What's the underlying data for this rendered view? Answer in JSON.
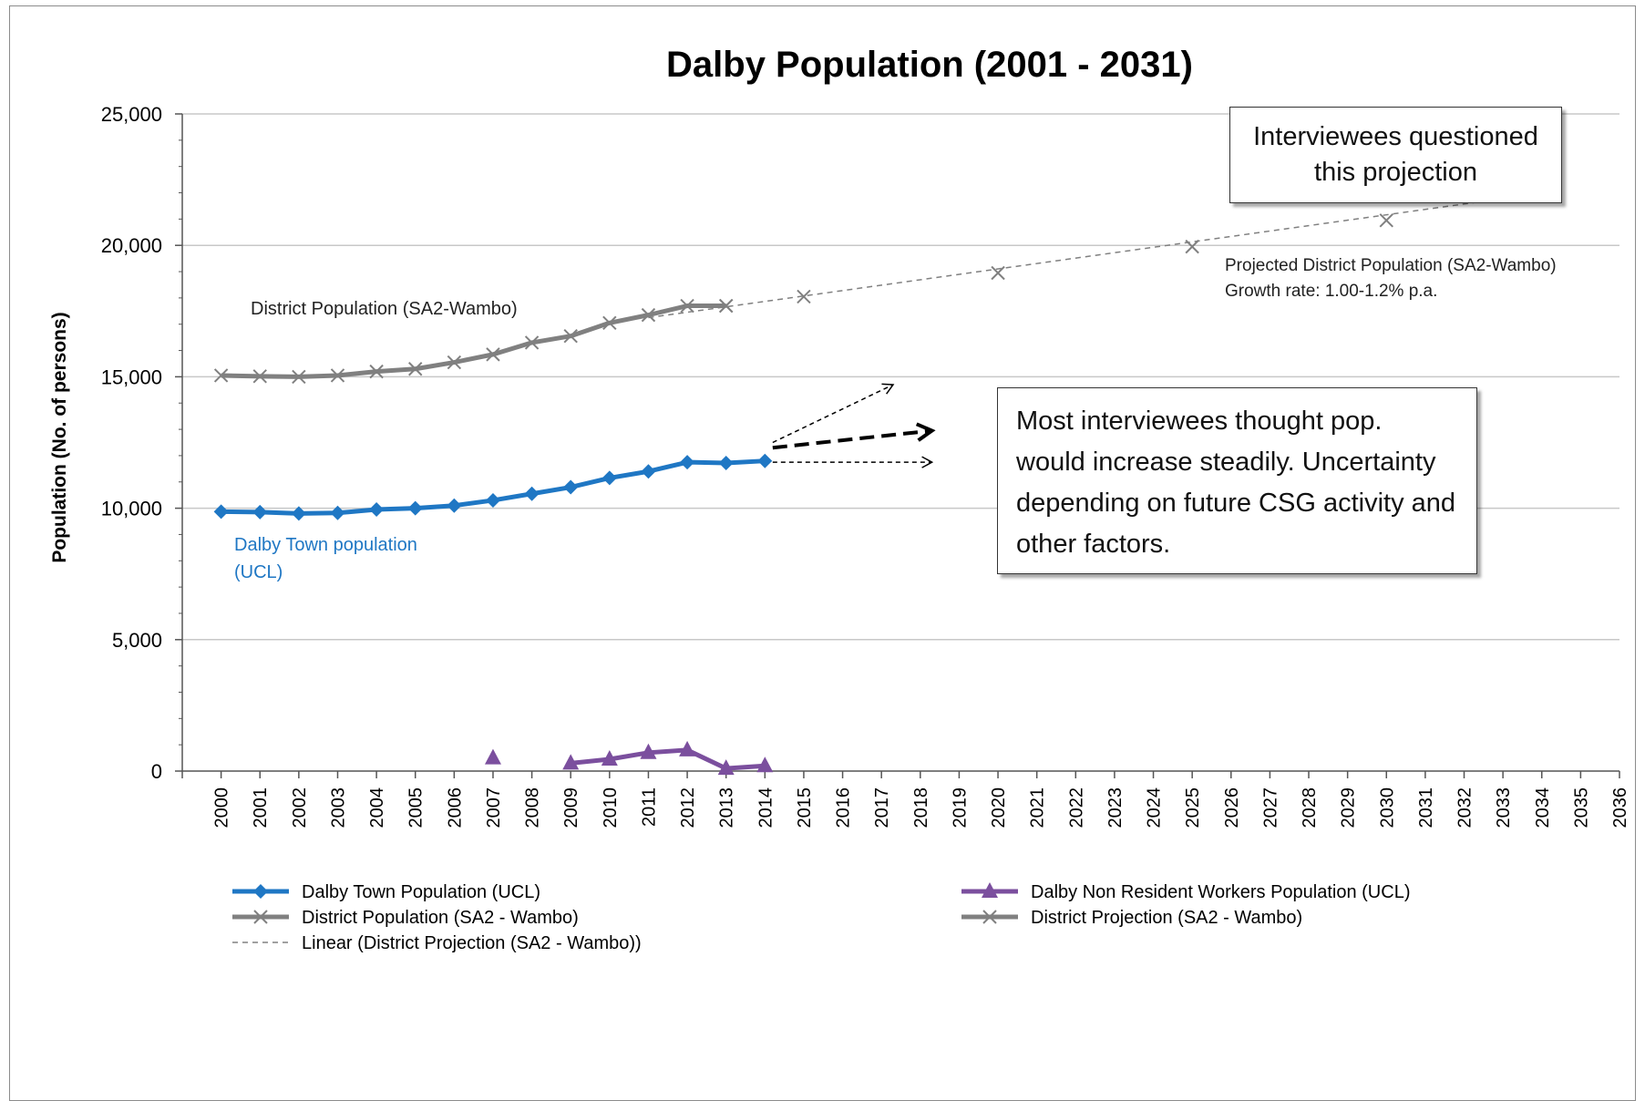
{
  "chart_data": {
    "type": "line",
    "title": "Dalby Population (2001 - 2031)",
    "ylabel": "Population (No. of persons)",
    "xlabel": "",
    "ylim": [
      0,
      25000
    ],
    "yticks": [
      0,
      5000,
      10000,
      15000,
      20000,
      25000
    ],
    "ytick_labels": [
      "0",
      "5,000",
      "10,000",
      "15,000",
      "20,000",
      "25,000"
    ],
    "xlim": [
      2000,
      2037
    ],
    "xtick_labels": [
      "2000",
      "2001",
      "2002",
      "2003",
      "2004",
      "2005",
      "2006",
      "2007",
      "2008",
      "2009",
      "2010",
      "2011",
      "2012",
      "2013",
      "2014",
      "2015",
      "2016",
      "2017",
      "2018",
      "2019",
      "2020",
      "2021",
      "2022",
      "2023",
      "2024",
      "2025",
      "2026",
      "2027",
      "2028",
      "2029",
      "2030",
      "2031",
      "2032",
      "2033",
      "2034",
      "2035",
      "2036"
    ],
    "grid": true,
    "legend_position": "bottom",
    "series": [
      {
        "name": "Dalby Town Population (UCL)",
        "color": "#1f77c4",
        "marker": "diamond",
        "x": [
          2001,
          2002,
          2003,
          2004,
          2005,
          2006,
          2007,
          2008,
          2009,
          2010,
          2011,
          2012,
          2013,
          2014,
          2015
        ],
        "y": [
          9870,
          9850,
          9800,
          9820,
          9950,
          10000,
          10100,
          10300,
          10550,
          10800,
          11150,
          11400,
          11750,
          11720,
          11800
        ]
      },
      {
        "name": "Dalby Non Resident Workers Population (UCL)",
        "color": "#7b4f9e",
        "marker": "triangle",
        "x": [
          2008,
          2010,
          2011,
          2012,
          2013,
          2014,
          2015
        ],
        "y": [
          500,
          300,
          450,
          700,
          800,
          100,
          200
        ],
        "segments": [
          [
            2008
          ],
          [
            2010,
            2011,
            2012,
            2013,
            2014,
            2015
          ]
        ]
      },
      {
        "name": "District Population (SA2 - Wambo)",
        "color": "#808080",
        "marker": "x",
        "x": [
          2001,
          2002,
          2003,
          2004,
          2005,
          2006,
          2007,
          2008,
          2009,
          2010,
          2011,
          2012,
          2013,
          2014
        ],
        "y": [
          15050,
          15020,
          15000,
          15050,
          15200,
          15300,
          15550,
          15850,
          16300,
          16550,
          17050,
          17350,
          17700,
          17700
        ]
      },
      {
        "name": "District Projection (SA2 - Wambo)",
        "color": "#808080",
        "marker": "x",
        "x": [
          2014,
          2016,
          2021,
          2026,
          2031
        ],
        "y": [
          17700,
          18050,
          18950,
          19950,
          20950
        ]
      },
      {
        "name": "Linear (District Projection (SA2 - Wambo))",
        "color": "#808080",
        "style": "dashed",
        "x": [
          2012,
          2034
        ],
        "y": [
          17250,
          21780
        ]
      }
    ],
    "arrows": [
      {
        "style": "thin-dashed",
        "from": [
          2015.2,
          12500
        ],
        "to": [
          2018.3,
          14700
        ]
      },
      {
        "style": "bold-dashed",
        "from": [
          2015.2,
          12300
        ],
        "to": [
          2019.3,
          12950
        ]
      },
      {
        "style": "thin-dashed",
        "from": [
          2015.2,
          11750
        ],
        "to": [
          2019.3,
          11750
        ]
      }
    ],
    "annotations": {
      "district_label": "District Population (SA2-Wambo)",
      "town_label_1": "Dalby Town population",
      "town_label_2": "(UCL)",
      "projection_label_1": "Projected District Population (SA2-Wambo)",
      "projection_label_2": "Growth rate: 1.00-1.2% p.a.",
      "callout_top": "Interviewees questioned this projection",
      "callout_mid": "Most interviewees thought pop. would increase steadily. Uncertainty depending on future CSG activity and other factors."
    },
    "legend": [
      "Dalby Town Population (UCL)",
      "Dalby Non Resident Workers Population (UCL)",
      "District Population (SA2 - Wambo)",
      "District Projection (SA2 - Wambo)",
      "Linear (District Projection (SA2 - Wambo))"
    ]
  }
}
